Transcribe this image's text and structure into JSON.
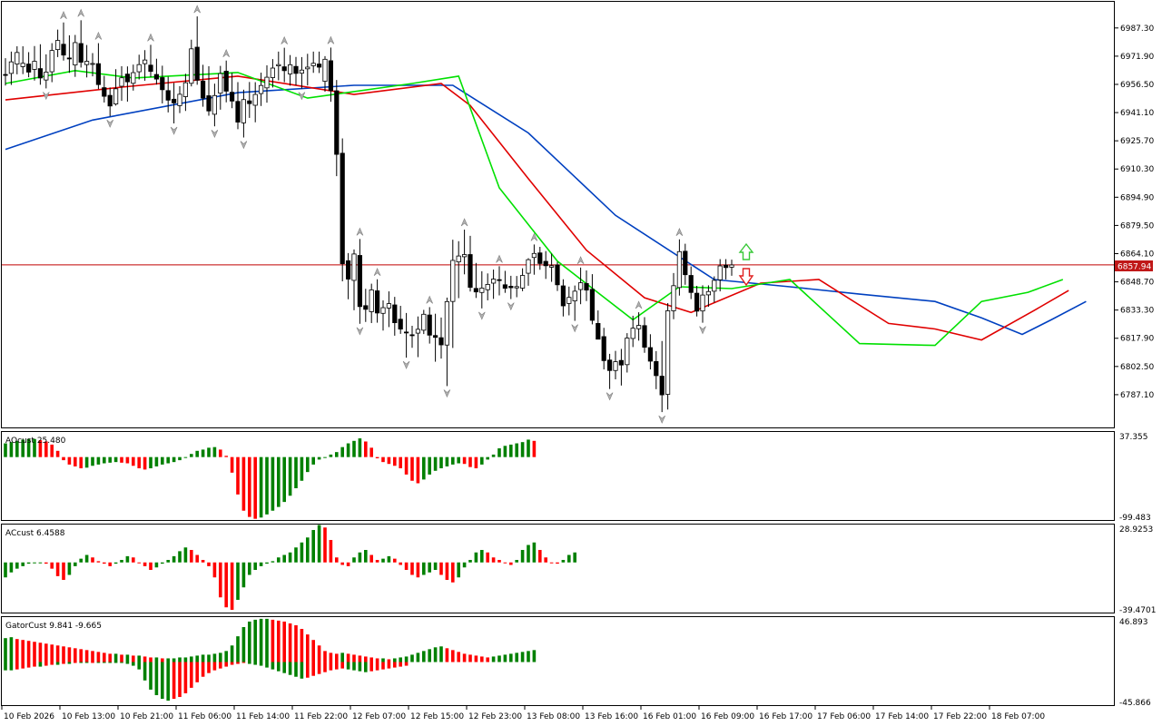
{
  "symbol": "",
  "main_panel": {
    "price_axis": [
      "6987.30",
      "6971.90",
      "6956.50",
      "6941.10",
      "6925.70",
      "6910.30",
      "6894.90",
      "6879.50",
      "6864.10",
      "6848.70",
      "6833.30",
      "6817.90",
      "6802.50",
      "6787.10"
    ],
    "current_price": "6857.94",
    "price_min": 6771.7,
    "price_max": 6998.6
  },
  "panels": [
    {
      "id": "ao",
      "label": "AOcust 25.480",
      "top_value": "37.355",
      "bottom_value": "-99.483"
    },
    {
      "id": "ac",
      "label": "ACcust 6.4588",
      "top_value": "28.9253",
      "bottom_value": "-39.4701"
    },
    {
      "id": "gator",
      "label": "GatorCust 9.841 -9.665",
      "top_value": "46.893",
      "bottom_value": "-45.866"
    }
  ],
  "time_axis": [
    "10 Feb 2026",
    "10 Feb 13:00",
    "10 Feb 21:00",
    "11 Feb 06:00",
    "11 Feb 14:00",
    "11 Feb 22:00",
    "12 Feb 07:00",
    "12 Feb 15:00",
    "12 Feb 23:00",
    "13 Feb 08:00",
    "13 Feb 16:00",
    "16 Feb 01:00",
    "16 Feb 09:00",
    "16 Feb 17:00",
    "17 Feb 06:00",
    "17 Feb 14:00",
    "17 Feb 22:00",
    "18 Feb 07:00"
  ],
  "colors": {
    "bull_bar": "#008000",
    "bear_bar": "#ff0000",
    "jaw": "#0040c0",
    "teeth": "#e00000",
    "lips": "#00e000",
    "current_price_line": "#c00000",
    "price_tag_bg": "#c01818",
    "candle_up": "#ffffff",
    "candle_down": "#000000"
  },
  "icons": {
    "buy_signal": "arrow-up-icon",
    "sell_signal": "arrow-down-icon",
    "fractal": "fractal-arrow-icon"
  },
  "chart_data": {
    "type": "candlestick",
    "title": "",
    "candles": [
      [
        6961.9,
        6970.8,
        6955.9,
        6961.6
      ],
      [
        6962.5,
        6974.4,
        6956.2,
        6968.8
      ],
      [
        6967.6,
        6977.3,
        6962,
        6973.9
      ],
      [
        6966.2,
        6977.3,
        6962.1,
        6968
      ],
      [
        6967.6,
        6974.1,
        6960.4,
        6963.2
      ],
      [
        6964.7,
        6977.4,
        6958.6,
        6969.1
      ],
      [
        6965.1,
        6978.4,
        6956.3,
        6960
      ],
      [
        6958.9,
        6972.9,
        6954.3,
        6963.2
      ],
      [
        6963.4,
        6979,
        6957.7,
        6975
      ],
      [
        6975.5,
        6986.4,
        6971.4,
        6980.5
      ],
      [
        6978.4,
        6990.3,
        6969.5,
        6972.5
      ],
      [
        6970.9,
        6983.3,
        6962.8,
        6970.4
      ],
      [
        6967.1,
        6983.5,
        6960.6,
        6979.3
      ],
      [
        6978.8,
        6991.5,
        6965.7,
        6968.6
      ],
      [
        6967.3,
        6978,
        6960.3,
        6969.1
      ],
      [
        6967.7,
        6973.6,
        6960.9,
        6967.9
      ],
      [
        6967.8,
        6979,
        6953.9,
        6956.4
      ],
      [
        6954.7,
        6961.2,
        6946.6,
        6950
      ],
      [
        6950.5,
        6954.8,
        6939.1,
        6944.7
      ],
      [
        6945.8,
        6964.8,
        6944.9,
        6954.1
      ],
      [
        6955.5,
        6966.4,
        6947.5,
        6960.1
      ],
      [
        6962.1,
        6966.3,
        6947.1,
        6957.9
      ],
      [
        6957.1,
        6967.3,
        6953.1,
        6962.9
      ],
      [
        6963.4,
        6972.7,
        6959.2,
        6967.3
      ],
      [
        6967.8,
        6975.2,
        6958.5,
        6969.8
      ],
      [
        6967,
        6978.1,
        6960.5,
        6963.6
      ],
      [
        6961.9,
        6970.5,
        6956.4,
        6959.4
      ],
      [
        6960.2,
        6966.7,
        6946.1,
        6953.6
      ],
      [
        6953.1,
        6960.7,
        6941.2,
        6947.9
      ],
      [
        6948.4,
        6957.3,
        6935.2,
        6946.4
      ],
      [
        6944.9,
        6955.5,
        6940.8,
        6951.1
      ],
      [
        6949.8,
        6962.3,
        6942,
        6957.4
      ],
      [
        6957.1,
        6980.9,
        6955.4,
        6975.9
      ],
      [
        6976.8,
        6993.6,
        6956.3,
        6958.8
      ],
      [
        6958.3,
        6967.2,
        6944.3,
        6949
      ],
      [
        6950.3,
        6966.4,
        6939.4,
        6942
      ],
      [
        6940.2,
        6956.9,
        6933.6,
        6950.4
      ],
      [
        6951.7,
        6966.6,
        6942.7,
        6962.4
      ],
      [
        6963.7,
        6969.5,
        6946.7,
        6952.8
      ],
      [
        6952.2,
        6962.8,
        6943.5,
        6947.4
      ],
      [
        6947.2,
        6957.7,
        6932,
        6935.9
      ],
      [
        6935.5,
        6953.6,
        6927.5,
        6948.2
      ],
      [
        6947.5,
        6957.8,
        6938.2,
        6946
      ],
      [
        6945.1,
        6957.7,
        6935.8,
        6951
      ],
      [
        6951.5,
        6962.9,
        6944.7,
        6955.9
      ],
      [
        6954.6,
        6966.9,
        6946.5,
        6960.4
      ],
      [
        6960.2,
        6970.3,
        6954.8,
        6965.4
      ],
      [
        6966.6,
        6974.4,
        6958.7,
        6967.3
      ],
      [
        6966.1,
        6976.5,
        6957.7,
        6964
      ],
      [
        6962.2,
        6972.5,
        6955.8,
        6967.2
      ],
      [
        6966.3,
        6971.5,
        6956,
        6962.5
      ],
      [
        6962.6,
        6971.4,
        6954.2,
        6964.3
      ],
      [
        6965,
        6973.2,
        6955.9,
        6965.9
      ],
      [
        6966.7,
        6974.4,
        6962.8,
        6968
      ],
      [
        6967.6,
        6974.4,
        6962.7,
        6965.9
      ],
      [
        6958.2,
        6971.9,
        6952.5,
        6970.2
      ],
      [
        6969.4,
        6976.6,
        6947,
        6953.1
      ],
      [
        6953,
        6958.9,
        6906.4,
        6918.3
      ],
      [
        6918.9,
        6927,
        6849,
        6858.6
      ],
      [
        6860.2,
        6864.4,
        6839.2,
        6850.2
      ],
      [
        6849.5,
        6866.4,
        6833.2,
        6863.9
      ],
      [
        6863.1,
        6872.1,
        6825.8,
        6835.2
      ],
      [
        6835.7,
        6844.9,
        6826.8,
        6833.7
      ],
      [
        6832.4,
        6847.7,
        6826.2,
        6844.3
      ],
      [
        6843.8,
        6850.1,
        6826.4,
        6831.7
      ],
      [
        6831.5,
        6838.6,
        6822.1,
        6834.6
      ],
      [
        6834.4,
        6843.5,
        6824,
        6836.8
      ],
      [
        6836.1,
        6840.5,
        6819.3,
        6826.4
      ],
      [
        6828.3,
        6835.6,
        6820.3,
        6822.9
      ],
      [
        6821.3,
        6831.7,
        6807.3,
        6820.9
      ],
      [
        6819.8,
        6824.7,
        6812.7,
        6819.3
      ],
      [
        6820.7,
        6829.8,
        6807.6,
        6822.8
      ],
      [
        6822.3,
        6833.4,
        6820.2,
        6831
      ],
      [
        6830.6,
        6834.9,
        6815,
        6819.6
      ],
      [
        6819.4,
        6831.3,
        6805.1,
        6818.4
      ],
      [
        6818.2,
        6829.2,
        6806.8,
        6814.3
      ],
      [
        6814.2,
        6840.1,
        6791.8,
        6837.9
      ],
      [
        6838,
        6871.7,
        6812.6,
        6860.4
      ],
      [
        6859.6,
        6870.9,
        6839.8,
        6862.8
      ],
      [
        6862.4,
        6877.2,
        6852.8,
        6863.6
      ],
      [
        6863.6,
        6873.8,
        6843.4,
        6845.7
      ],
      [
        6845.1,
        6859,
        6839.9,
        6843.2
      ],
      [
        6842.9,
        6854.5,
        6834.2,
        6845.3
      ],
      [
        6844.4,
        6853.3,
        6838.6,
        6847.3
      ],
      [
        6848,
        6855.4,
        6839.4,
        6850.2
      ],
      [
        6849.9,
        6857.2,
        6841.3,
        6849.4
      ],
      [
        6847.1,
        6854.7,
        6842.7,
        6845.2
      ],
      [
        6846.3,
        6852,
        6839.3,
        6845.5
      ],
      [
        6845.4,
        6851.9,
        6840.3,
        6846.1
      ],
      [
        6845.3,
        6856.1,
        6843.6,
        6852.2
      ],
      [
        6853.4,
        6861.6,
        6846.6,
        6860.8
      ],
      [
        6862,
        6869.1,
        6852.6,
        6864.2
      ],
      [
        6864.5,
        6867.8,
        6855.3,
        6858.7
      ],
      [
        6859.9,
        6865.5,
        6850.3,
        6857.5
      ],
      [
        6856.7,
        6864.1,
        6848.7,
        6857.5
      ],
      [
        6857.9,
        6859.6,
        6843.7,
        6847.1
      ],
      [
        6846.5,
        6850.1,
        6829.8,
        6835.6
      ],
      [
        6836.9,
        6846.1,
        6830.4,
        6840.2
      ],
      [
        6838.3,
        6846.7,
        6827.4,
        6843.6
      ],
      [
        6844.5,
        6856.5,
        6836.5,
        6848.2
      ],
      [
        6847.8,
        6854.9,
        6838.2,
        6844.2
      ],
      [
        6844.6,
        6852.9,
        6825.5,
        6827.7
      ],
      [
        6826,
        6833.1,
        6819.4,
        6817.4
      ],
      [
        6818.8,
        6823.6,
        6800.9,
        6805.7
      ],
      [
        6806,
        6809.4,
        6790.2,
        6800.3
      ],
      [
        6800.3,
        6811,
        6795.5,
        6805.1
      ],
      [
        6805.8,
        6812.1,
        6792.1,
        6803.3
      ],
      [
        6803.5,
        6820.7,
        6799.2,
        6818
      ],
      [
        6817.8,
        6830.2,
        6813.1,
        6823.4
      ],
      [
        6823.1,
        6832.1,
        6816.6,
        6824.9
      ],
      [
        6824.8,
        6829.4,
        6810,
        6813
      ],
      [
        6812.8,
        6820.1,
        6800.9,
        6805.4
      ],
      [
        6805.2,
        6810.9,
        6790.1,
        6797.5
      ],
      [
        6797.2,
        6816.4,
        6777.6,
        6787
      ],
      [
        6787.3,
        6837.1,
        6779,
        6832.9
      ],
      [
        6832.9,
        6853.5,
        6828.3,
        6846.6
      ],
      [
        6845.6,
        6871.9,
        6841.2,
        6865.2
      ],
      [
        6865.4,
        6869.5,
        6847.1,
        6852.6
      ],
      [
        6852.2,
        6857.1,
        6839.3,
        6842.9
      ],
      [
        6842.5,
        6846.5,
        6829.8,
        6832.7
      ],
      [
        6832.8,
        6846.8,
        6826.4,
        6841.5
      ],
      [
        6841.6,
        6846.8,
        6835.1,
        6843.4
      ],
      [
        6843.6,
        6851.7,
        6837.4,
        6849.5
      ],
      [
        6849.8,
        6861.1,
        6843.5,
        6857.4
      ],
      [
        6857.8,
        6861.1,
        6850,
        6856.5
      ],
      [
        6856.7,
        6860.8,
        6852,
        6857.9
      ]
    ],
    "jaw": [
      [
        0,
        6921
      ],
      [
        15,
        6937
      ],
      [
        40,
        6952
      ],
      [
        60,
        6956
      ],
      [
        77,
        6956
      ],
      [
        90,
        6930
      ],
      [
        105,
        6885
      ],
      [
        122,
        6850
      ],
      [
        135,
        6846
      ],
      [
        147,
        6842
      ],
      [
        160,
        6838
      ],
      [
        168,
        6829
      ],
      [
        175,
        6820
      ],
      [
        180,
        6828
      ],
      [
        186,
        6838
      ]
    ],
    "teeth": [
      [
        0,
        6948
      ],
      [
        20,
        6955
      ],
      [
        40,
        6961
      ],
      [
        60,
        6951
      ],
      [
        75,
        6957
      ],
      [
        80,
        6945
      ],
      [
        90,
        6905
      ],
      [
        100,
        6866
      ],
      [
        110,
        6840
      ],
      [
        118,
        6832
      ],
      [
        130,
        6848
      ],
      [
        140,
        6850
      ],
      [
        152,
        6826
      ],
      [
        160,
        6823
      ],
      [
        168,
        6817
      ],
      [
        177,
        6833
      ],
      [
        183,
        6844
      ]
    ],
    "lips": [
      [
        0,
        6957
      ],
      [
        12,
        6964
      ],
      [
        22,
        6960
      ],
      [
        40,
        6963
      ],
      [
        52,
        6949
      ],
      [
        70,
        6957
      ],
      [
        78,
        6961
      ],
      [
        85,
        6900
      ],
      [
        95,
        6860
      ],
      [
        108,
        6828
      ],
      [
        116,
        6846
      ],
      [
        125,
        6845
      ],
      [
        135,
        6850
      ],
      [
        147,
        6815
      ],
      [
        160,
        6814
      ],
      [
        168,
        6838
      ],
      [
        176,
        6843
      ],
      [
        182,
        6850
      ]
    ],
    "ao": [
      22,
      24,
      26,
      28,
      29,
      29,
      27,
      25,
      20,
      10,
      -5,
      -12,
      -15,
      -18,
      -17,
      -14,
      -12,
      -10,
      -9,
      -8,
      -9,
      -10,
      -14,
      -18,
      -20,
      -18,
      -15,
      -12,
      -10,
      -8,
      -5,
      -1,
      5,
      10,
      12,
      15,
      16,
      12,
      2,
      -25,
      -60,
      -86,
      -96,
      -99,
      -97,
      -92,
      -86,
      -80,
      -72,
      -62,
      -50,
      -38,
      -24,
      -12,
      -4,
      0,
      4,
      8,
      16,
      22,
      26,
      30,
      25,
      15,
      -2,
      -8,
      -11,
      -14,
      -18,
      -28,
      -38,
      -42,
      -36,
      -28,
      -22,
      -18,
      -15,
      -12,
      -10,
      -11,
      -16,
      -18,
      -12,
      -4,
      4,
      14,
      18,
      20,
      22,
      24,
      28,
      26
    ],
    "ac": [
      -12,
      -8,
      -5,
      -3,
      -1,
      0,
      0,
      -1,
      -5,
      -11,
      -14,
      -10,
      -3,
      3,
      6,
      4,
      1,
      -1,
      -3,
      -1,
      2,
      5,
      4,
      0,
      -3,
      -6,
      -4,
      -1,
      2,
      5,
      9,
      12,
      10,
      6,
      2,
      -3,
      -12,
      -28,
      -36,
      -38,
      -30,
      -20,
      -10,
      -6,
      -3,
      -1,
      1,
      4,
      6,
      8,
      12,
      16,
      20,
      26,
      30,
      28,
      18,
      4,
      -2,
      -3,
      4,
      8,
      10,
      6,
      2,
      3,
      5,
      3,
      -2,
      -6,
      -10,
      -12,
      -10,
      -8,
      -6,
      -10,
      -14,
      -16,
      -12,
      -4,
      2,
      8,
      10,
      8,
      4,
      2,
      0,
      -2,
      2,
      10,
      14,
      16,
      10,
      4,
      0,
      -1,
      2,
      6,
      8
    ],
    "gator_upper": [
      26,
      27,
      25,
      24,
      23,
      22,
      21,
      20,
      19,
      18,
      17,
      16,
      15,
      14,
      13,
      12,
      11,
      10,
      9,
      9,
      8,
      8,
      7,
      7,
      6,
      5,
      5,
      4,
      4,
      4,
      5,
      5,
      6,
      7,
      8,
      8,
      9,
      10,
      12,
      18,
      28,
      38,
      44,
      46,
      47,
      47,
      46,
      45,
      44,
      42,
      40,
      36,
      30,
      24,
      18,
      12,
      10,
      9,
      10,
      9,
      8,
      7,
      6,
      5,
      4,
      4,
      3,
      4,
      5,
      6,
      8,
      10,
      12,
      14,
      16,
      17,
      15,
      13,
      11,
      9,
      8,
      7,
      6,
      5,
      6,
      7,
      8,
      9,
      10,
      11,
      12,
      13
    ],
    "gator_lower": [
      -9,
      -9,
      -8,
      -7,
      -6,
      -5,
      -5,
      -4,
      -3,
      -3,
      -2,
      -2,
      -1,
      -1,
      -1,
      0,
      0,
      0,
      0,
      0,
      -1,
      -2,
      -4,
      -8,
      -20,
      -30,
      -36,
      -40,
      -42,
      -40,
      -38,
      -34,
      -28,
      -22,
      -16,
      -12,
      -9,
      -7,
      -5,
      -3,
      -2,
      -1,
      -2,
      -3,
      -4,
      -6,
      -8,
      -10,
      -12,
      -14,
      -16,
      -18,
      -17,
      -15,
      -13,
      -11,
      -9,
      -8,
      -7,
      -8,
      -9,
      -10,
      -11,
      -10,
      -9,
      -8,
      -7,
      -6,
      -5,
      -4
    ]
  }
}
